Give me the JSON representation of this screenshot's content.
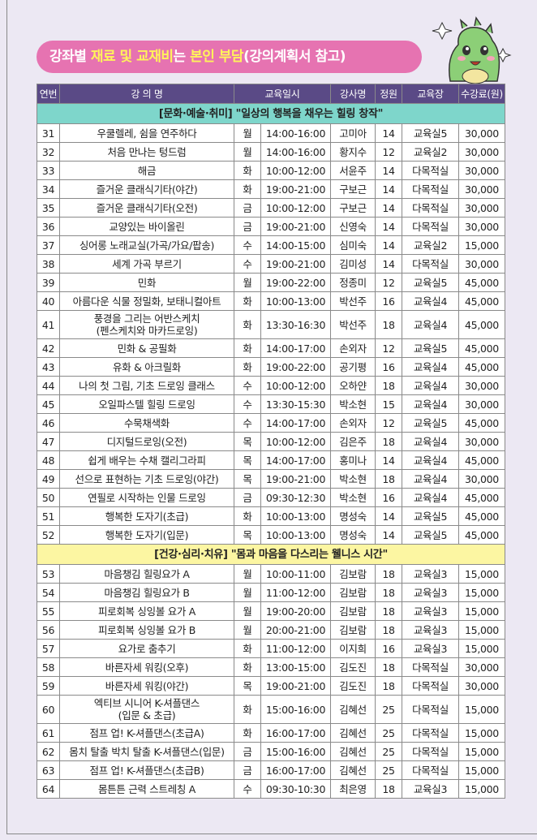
{
  "banner": {
    "parts": [
      {
        "text": "강좌별 ",
        "highlight": false
      },
      {
        "text": "재료 및 교재비",
        "highlight": true
      },
      {
        "text": "는 ",
        "highlight": false
      },
      {
        "text": "본인 부담",
        "highlight": true
      },
      {
        "text": "(강의계획서 참고)",
        "highlight": false
      }
    ]
  },
  "table": {
    "header": [
      "연번",
      "강 의 명",
      "교육일시",
      "강사명",
      "정원",
      "교육장",
      "수강료(원)"
    ],
    "sections": [
      {
        "title": "[문화·예술·취미] \"일상의 행복을 채우는 힐링 창작\"",
        "color": "#7ed6cb",
        "rows": [
          [
            "31",
            "우쿨렐레, 쉼을 연주하다",
            "월",
            "14:00-16:00",
            "고미아",
            "14",
            "교육실5",
            "30,000"
          ],
          [
            "32",
            "처음 만나는 텅드럼",
            "월",
            "14:00-16:00",
            "황지수",
            "12",
            "교육실2",
            "30,000"
          ],
          [
            "33",
            "해금",
            "화",
            "10:00-12:00",
            "서윤주",
            "14",
            "다목적실",
            "30,000"
          ],
          [
            "34",
            "즐거운 클래식기타(야간)",
            "화",
            "19:00-21:00",
            "구보근",
            "14",
            "다목적실",
            "30,000"
          ],
          [
            "35",
            "즐거운 클래식기타(오전)",
            "금",
            "10:00-12:00",
            "구보근",
            "14",
            "다목적실",
            "30,000"
          ],
          [
            "36",
            "교양있는 바이올린",
            "금",
            "19:00-21:00",
            "신영숙",
            "14",
            "다목적실",
            "30,000"
          ],
          [
            "37",
            "싱어롱 노래교실(가곡/가요/팝송)",
            "수",
            "14:00-15:00",
            "심미숙",
            "14",
            "교육실2",
            "15,000"
          ],
          [
            "38",
            "세계 가곡 부르기",
            "수",
            "19:00-21:00",
            "김미성",
            "14",
            "다목적실",
            "30,000"
          ],
          [
            "39",
            "민화",
            "월",
            "19:00-22:00",
            "정종미",
            "12",
            "교육실5",
            "45,000"
          ],
          [
            "40",
            "아름다운 식물 정밀화, 보태니컬아트",
            "화",
            "10:00-13:00",
            "박선주",
            "16",
            "교육실4",
            "45,000"
          ],
          [
            "41",
            [
              "풍경을 그리는 어반스케치",
              "(펜스케치와 마카드로잉)"
            ],
            "화",
            "13:30-16:30",
            "박선주",
            "18",
            "교육실4",
            "45,000"
          ],
          [
            "42",
            "민화 & 공필화",
            "화",
            "14:00-17:00",
            "손외자",
            "12",
            "교육실5",
            "45,000"
          ],
          [
            "43",
            "유화 & 아크릴화",
            "화",
            "19:00-22:00",
            "공기평",
            "16",
            "교육실4",
            "45,000"
          ],
          [
            "44",
            "나의 첫 그림, 기초 드로잉 클래스",
            "수",
            "10:00-12:00",
            "오하얀",
            "18",
            "교육실4",
            "30,000"
          ],
          [
            "45",
            "오일파스텔 힐링 드로잉",
            "수",
            "13:30-15:30",
            "박소현",
            "15",
            "교육실4",
            "30,000"
          ],
          [
            "46",
            "수묵채색화",
            "수",
            "14:00-17:00",
            "손외자",
            "12",
            "교육실5",
            "45,000"
          ],
          [
            "47",
            "디지털드로잉(오전)",
            "목",
            "10:00-12:00",
            "김은주",
            "18",
            "교육실4",
            "30,000"
          ],
          [
            "48",
            "쉽게 배우는 수채 캘리그라피",
            "목",
            "14:00-17:00",
            "홍미나",
            "14",
            "교육실4",
            "45,000"
          ],
          [
            "49",
            "선으로 표현하는 기초 드로잉(야간)",
            "목",
            "19:00-21:00",
            "박소현",
            "18",
            "교육실4",
            "30,000"
          ],
          [
            "50",
            "연필로 시작하는 인물 드로잉",
            "금",
            "09:30-12:30",
            "박소현",
            "16",
            "교육실4",
            "45,000"
          ],
          [
            "51",
            "행복한 도자기(초급)",
            "화",
            "10:00-13:00",
            "명성숙",
            "14",
            "교육실5",
            "45,000"
          ],
          [
            "52",
            "행복한 도자기(입문)",
            "목",
            "10:00-13:00",
            "명성숙",
            "14",
            "교육실5",
            "45,000"
          ]
        ]
      },
      {
        "title": "[건강·심리·치유] \"몸과 마음을 다스리는 웰니스 시간\"",
        "color": "#fcf6a2",
        "rows": [
          [
            "53",
            "마음챙김 힐링요가 A",
            "월",
            "10:00-11:00",
            "김보람",
            "18",
            "교육실3",
            "15,000"
          ],
          [
            "54",
            "마음챙김 힐링요가 B",
            "월",
            "11:00-12:00",
            "김보람",
            "18",
            "교육실3",
            "15,000"
          ],
          [
            "55",
            "피로회복 싱잉볼 요가 A",
            "월",
            "19:00-20:00",
            "김보람",
            "18",
            "교육실3",
            "15,000"
          ],
          [
            "56",
            "피로회복 싱잉볼 요가 B",
            "월",
            "20:00-21:00",
            "김보람",
            "18",
            "교육실3",
            "15,000"
          ],
          [
            "57",
            "요가로 춤추기",
            "화",
            "11:00-12:00",
            "이지희",
            "16",
            "교육실3",
            "15,000"
          ],
          [
            "58",
            "바른자세 워킹(오후)",
            "화",
            "13:00-15:00",
            "김도진",
            "18",
            "다목적실",
            "30,000"
          ],
          [
            "59",
            "바른자세 워킹(야간)",
            "목",
            "19:00-21:00",
            "김도진",
            "18",
            "다목적실",
            "30,000"
          ],
          [
            "60",
            [
              "엑티브 시니어 K-셔플댄스",
              "(입문 & 초급)"
            ],
            "화",
            "15:00-16:00",
            "김혜선",
            "25",
            "다목적실",
            "15,000"
          ],
          [
            "61",
            "점프 업! K-셔플댄스(초급A)",
            "화",
            "16:00-17:00",
            "김혜선",
            "25",
            "다목적실",
            "15,000"
          ],
          [
            "62",
            "몸치 탈출 박치 탈출 K-셔플댄스(입문)",
            "금",
            "15:00-16:00",
            "김혜선",
            "25",
            "다목적실",
            "15,000"
          ],
          [
            "63",
            "점프 업! K-셔플댄스(초급B)",
            "금",
            "16:00-17:00",
            "김혜선",
            "25",
            "다목적실",
            "15,000"
          ],
          [
            "64",
            "몸튼튼 근력 스트레칭 A",
            "수",
            "09:30-10:30",
            "최은영",
            "18",
            "교육실3",
            "15,000"
          ]
        ]
      }
    ]
  }
}
